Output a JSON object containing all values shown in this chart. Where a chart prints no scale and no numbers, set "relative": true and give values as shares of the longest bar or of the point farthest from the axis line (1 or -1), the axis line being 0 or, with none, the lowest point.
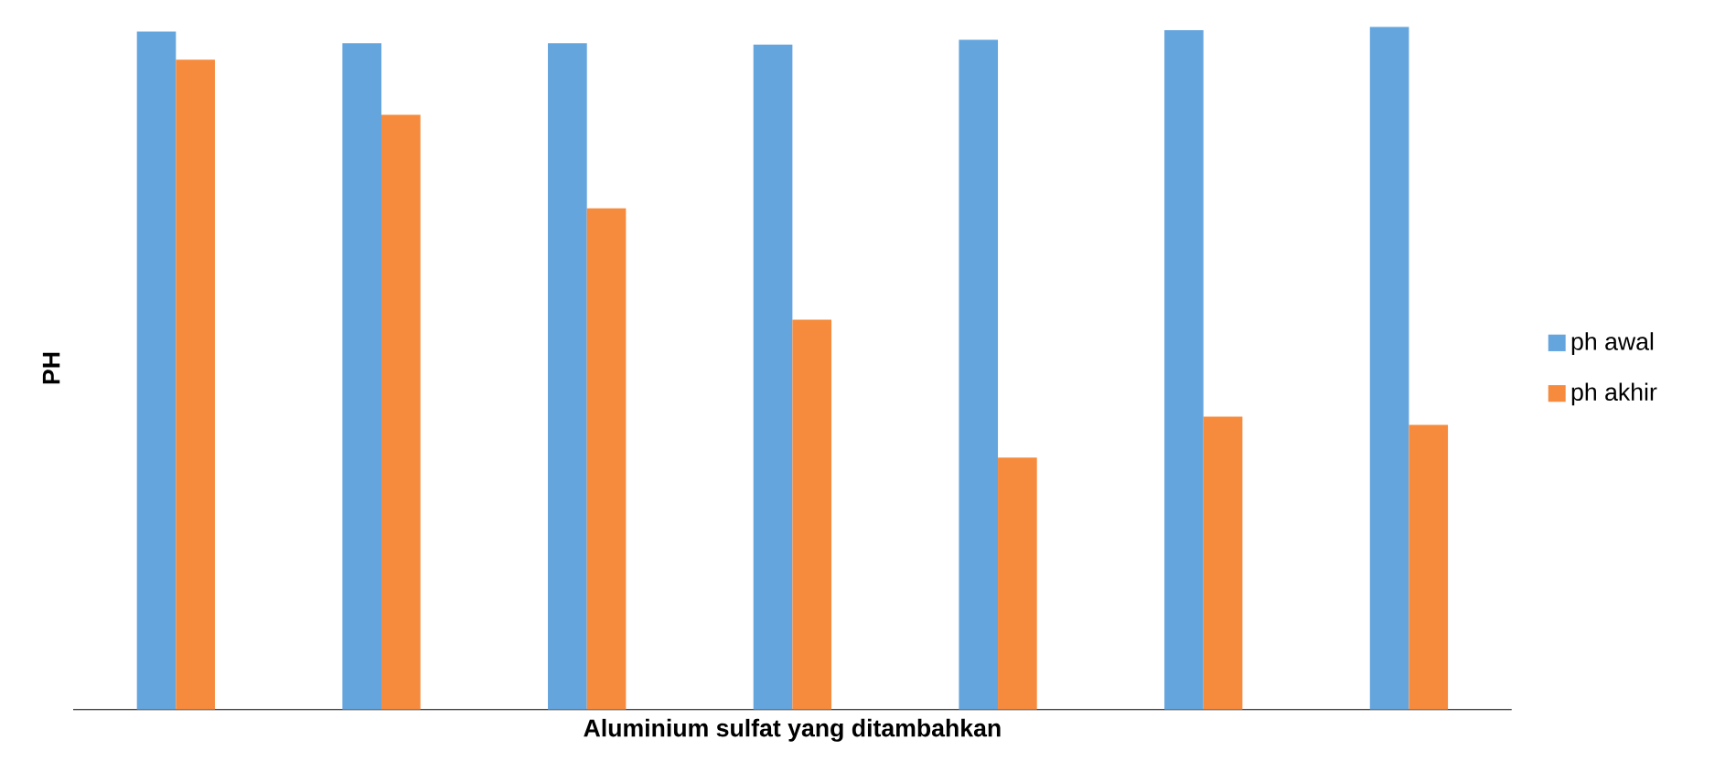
{
  "chart_data": {
    "type": "bar",
    "relative": true,
    "xlabel": "Aluminium sulfat yang ditambahkan",
    "ylabel": "PH",
    "legend": "right",
    "categories": [
      null,
      null,
      null,
      null,
      null,
      null,
      null
    ],
    "series": [
      {
        "name": "ph awal",
        "color": "#64a5de",
        "values": [
          0.993,
          0.976,
          0.976,
          0.974,
          0.981,
          0.995,
          1.0
        ]
      },
      {
        "name": "ph akhir",
        "color": "#f68b3d",
        "values": [
          0.952,
          0.871,
          0.734,
          0.571,
          0.369,
          0.429,
          0.417
        ]
      }
    ]
  }
}
